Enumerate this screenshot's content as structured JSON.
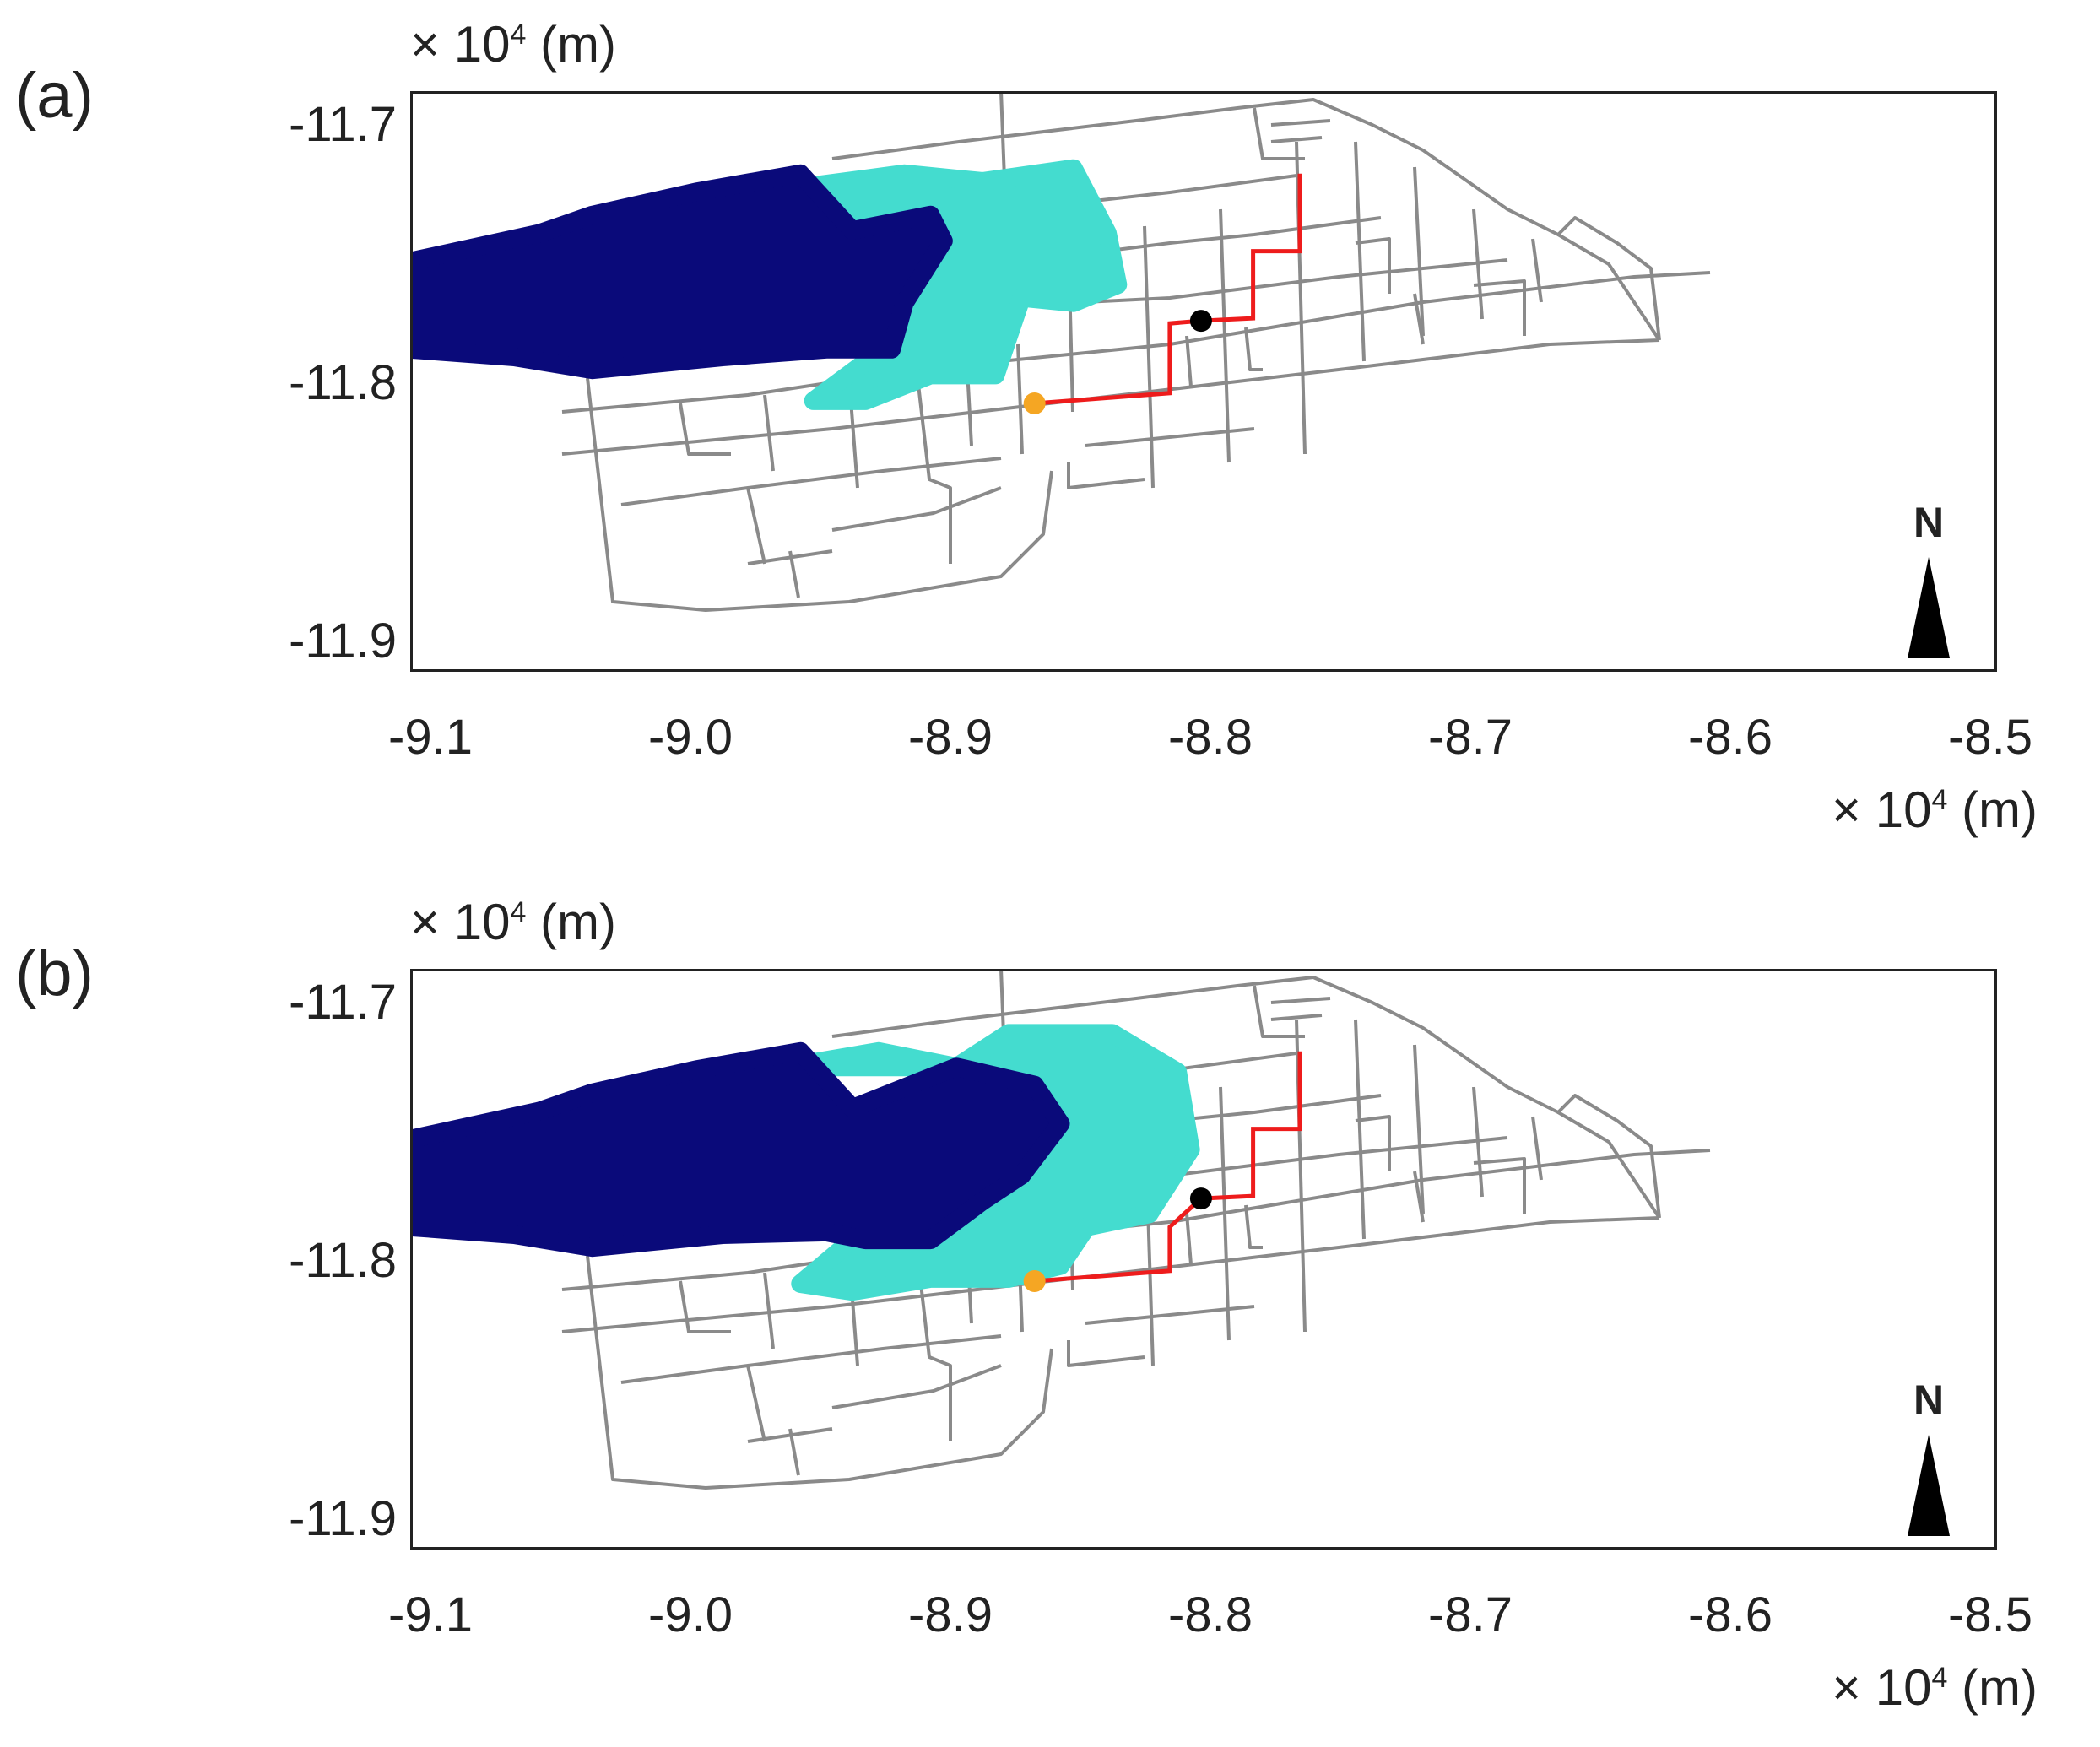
{
  "colors": {
    "road": "#8a8a8a",
    "region_dark": "#0a0a7a",
    "region_light": "#44dccf",
    "route": "#ee1c1c",
    "start_point": "#f5a623",
    "end_point": "#000000"
  },
  "unit_label": "× 10",
  "unit_exp": "4",
  "unit_suffix": " (m)",
  "north_label": "N",
  "axes": {
    "x_ticks": [
      "-9.1",
      "-9.0",
      "-8.9",
      "-8.8",
      "-8.7",
      "-8.6",
      "-8.5"
    ],
    "y_ticks": [
      "-11.7",
      "-11.8",
      "-11.9"
    ],
    "xlim": [
      -9.11,
      -8.5
    ],
    "ylim": [
      -11.915,
      -11.69
    ]
  },
  "panels": [
    {
      "label": "(a)",
      "route": [
        [
          -8.87,
          -11.811
        ],
        [
          -8.818,
          -11.807
        ],
        [
          -8.818,
          -11.78
        ],
        [
          -8.806,
          -11.779
        ],
        [
          -8.786,
          -11.778
        ],
        [
          -8.786,
          -11.752
        ],
        [
          -8.768,
          -11.752
        ],
        [
          -8.768,
          -11.722
        ]
      ],
      "start_point": [
        -8.87,
        -11.811
      ],
      "end_point": [
        -8.806,
        -11.779
      ],
      "dark_region": [
        [
          -9.11,
          -11.756
        ],
        [
          -9.06,
          -11.745
        ],
        [
          -9.04,
          -11.738
        ],
        [
          -9.0,
          -11.729
        ],
        [
          -8.96,
          -11.722
        ],
        [
          -8.94,
          -11.744
        ],
        [
          -8.91,
          -11.738
        ],
        [
          -8.905,
          -11.748
        ],
        [
          -8.92,
          -11.772
        ],
        [
          -8.925,
          -11.79
        ],
        [
          -8.95,
          -11.79
        ],
        [
          -8.99,
          -11.793
        ],
        [
          -9.04,
          -11.798
        ],
        [
          -9.07,
          -11.793
        ],
        [
          -9.11,
          -11.79
        ]
      ],
      "light_region": [
        [
          -8.965,
          -11.728
        ],
        [
          -8.92,
          -11.722
        ],
        [
          -8.89,
          -11.725
        ],
        [
          -8.855,
          -11.72
        ],
        [
          -8.842,
          -11.745
        ],
        [
          -8.838,
          -11.765
        ],
        [
          -8.855,
          -11.772
        ],
        [
          -8.875,
          -11.77
        ],
        [
          -8.885,
          -11.8
        ],
        [
          -8.91,
          -11.8
        ],
        [
          -8.935,
          -11.81
        ],
        [
          -8.955,
          -11.81
        ],
        [
          -8.935,
          -11.795
        ],
        [
          -8.925,
          -11.79
        ],
        [
          -8.92,
          -11.772
        ],
        [
          -8.905,
          -11.748
        ],
        [
          -8.91,
          -11.738
        ],
        [
          -8.94,
          -11.744
        ]
      ]
    },
    {
      "label": "(b)",
      "route": [
        [
          -8.87,
          -11.811
        ],
        [
          -8.818,
          -11.807
        ],
        [
          -8.818,
          -11.79
        ],
        [
          -8.806,
          -11.779
        ],
        [
          -8.786,
          -11.778
        ],
        [
          -8.786,
          -11.752
        ],
        [
          -8.768,
          -11.752
        ],
        [
          -8.768,
          -11.722
        ]
      ],
      "start_point": [
        -8.87,
        -11.811
      ],
      "end_point": [
        -8.806,
        -11.779
      ],
      "dark_region": [
        [
          -9.11,
          -11.756
        ],
        [
          -9.06,
          -11.745
        ],
        [
          -9.04,
          -11.738
        ],
        [
          -9.0,
          -11.729
        ],
        [
          -8.96,
          -11.722
        ],
        [
          -8.94,
          -11.744
        ],
        [
          -8.9,
          -11.728
        ],
        [
          -8.87,
          -11.735
        ],
        [
          -8.86,
          -11.75
        ],
        [
          -8.875,
          -11.77
        ],
        [
          -8.89,
          -11.78
        ],
        [
          -8.91,
          -11.795
        ],
        [
          -8.935,
          -11.795
        ],
        [
          -8.95,
          -11.792
        ],
        [
          -8.99,
          -11.793
        ],
        [
          -9.04,
          -11.798
        ],
        [
          -9.07,
          -11.793
        ],
        [
          -9.11,
          -11.79
        ]
      ],
      "light_region": [
        [
          -8.965,
          -11.728
        ],
        [
          -8.93,
          -11.722
        ],
        [
          -8.9,
          -11.728
        ],
        [
          -8.88,
          -11.715
        ],
        [
          -8.84,
          -11.715
        ],
        [
          -8.815,
          -11.73
        ],
        [
          -8.81,
          -11.76
        ],
        [
          -8.826,
          -11.785
        ],
        [
          -8.85,
          -11.79
        ],
        [
          -8.86,
          -11.805
        ],
        [
          -8.88,
          -11.81
        ],
        [
          -8.91,
          -11.81
        ],
        [
          -8.94,
          -11.815
        ],
        [
          -8.96,
          -11.812
        ],
        [
          -8.94,
          -11.795
        ],
        [
          -8.91,
          -11.795
        ],
        [
          -8.89,
          -11.78
        ],
        [
          -8.875,
          -11.77
        ],
        [
          -8.86,
          -11.75
        ],
        [
          -8.87,
          -11.735
        ],
        [
          -8.9,
          -11.728
        ]
      ]
    }
  ]
}
